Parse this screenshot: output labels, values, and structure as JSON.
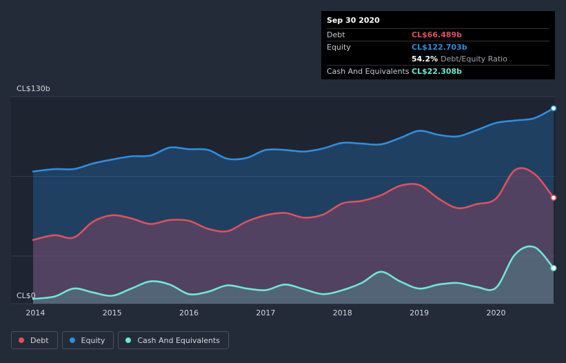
{
  "tooltip": {
    "date": "Sep 30 2020",
    "debt_label": "Debt",
    "debt_value": "CL$66.489b",
    "equity_label": "Equity",
    "equity_value": "CL$122.703b",
    "ratio_value": "54.2%",
    "ratio_label": "Debt/Equity Ratio",
    "cash_label": "Cash And Equivalents",
    "cash_value": "CL$22.308b"
  },
  "legend": [
    {
      "label": "Debt",
      "color": "#e0505f"
    },
    {
      "label": "Equity",
      "color": "#2d8fe0"
    },
    {
      "label": "Cash And Equivalents",
      "color": "#6ee8d8"
    }
  ],
  "chart_data": {
    "type": "area",
    "ylim": [
      0,
      130
    ],
    "y_tick_labels": [
      "CL$0",
      "CL$130b"
    ],
    "x_tick_labels": [
      "2014",
      "2015",
      "2016",
      "2017",
      "2018",
      "2019",
      "2020"
    ],
    "x_tick_values": [
      2014,
      2015,
      2016,
      2017,
      2018,
      2019,
      2020
    ],
    "xlim": [
      2013.97,
      2020.75
    ],
    "series": [
      {
        "name": "Equity",
        "color": "#2d8fe0",
        "x": [
          2013.97,
          2014.25,
          2014.5,
          2014.75,
          2015.0,
          2015.25,
          2015.5,
          2015.75,
          2016.0,
          2016.25,
          2016.5,
          2016.75,
          2017.0,
          2017.25,
          2017.5,
          2017.75,
          2018.0,
          2018.25,
          2018.5,
          2018.75,
          2019.0,
          2019.25,
          2019.5,
          2019.75,
          2020.0,
          2020.25,
          2020.5,
          2020.75
        ],
        "values": [
          83,
          84.5,
          84.5,
          88,
          90.5,
          92.5,
          93,
          98,
          97,
          96.5,
          91,
          91.5,
          96.5,
          96.5,
          95.5,
          97.5,
          101,
          100.5,
          100,
          104,
          108.5,
          106,
          105,
          109,
          113.5,
          115,
          116.5,
          122.7
        ]
      },
      {
        "name": "Debt",
        "color": "#e0505f",
        "x": [
          2013.97,
          2014.25,
          2014.5,
          2014.75,
          2015.0,
          2015.25,
          2015.5,
          2015.75,
          2016.0,
          2016.25,
          2016.5,
          2016.75,
          2017.0,
          2017.25,
          2017.5,
          2017.75,
          2018.0,
          2018.25,
          2018.5,
          2018.75,
          2019.0,
          2019.25,
          2019.5,
          2019.75,
          2020.0,
          2020.25,
          2020.5,
          2020.75
        ],
        "values": [
          40,
          43,
          41.5,
          51.5,
          55.5,
          53.5,
          50,
          52.5,
          52,
          47,
          45.5,
          51.5,
          55.5,
          57,
          54,
          56,
          63,
          64.5,
          68,
          74,
          74.5,
          66,
          60,
          62.5,
          66,
          84,
          81.5,
          66.5
        ]
      },
      {
        "name": "Cash And Equivalents",
        "color": "#6ee8d8",
        "x": [
          2013.97,
          2014.25,
          2014.5,
          2014.75,
          2015.0,
          2015.25,
          2015.5,
          2015.75,
          2016.0,
          2016.25,
          2016.5,
          2016.75,
          2017.0,
          2017.25,
          2017.5,
          2017.75,
          2018.0,
          2018.25,
          2018.5,
          2018.75,
          2019.0,
          2019.25,
          2019.5,
          2019.75,
          2020.0,
          2020.25,
          2020.5,
          2020.75
        ],
        "values": [
          3,
          4.5,
          9.5,
          7,
          5,
          9.5,
          14,
          12,
          6,
          7.5,
          11.5,
          9.5,
          8.5,
          12,
          9,
          6,
          8.5,
          13,
          20,
          14,
          9.5,
          12,
          13,
          10.5,
          10,
          31,
          35.5,
          22.3
        ]
      }
    ]
  }
}
